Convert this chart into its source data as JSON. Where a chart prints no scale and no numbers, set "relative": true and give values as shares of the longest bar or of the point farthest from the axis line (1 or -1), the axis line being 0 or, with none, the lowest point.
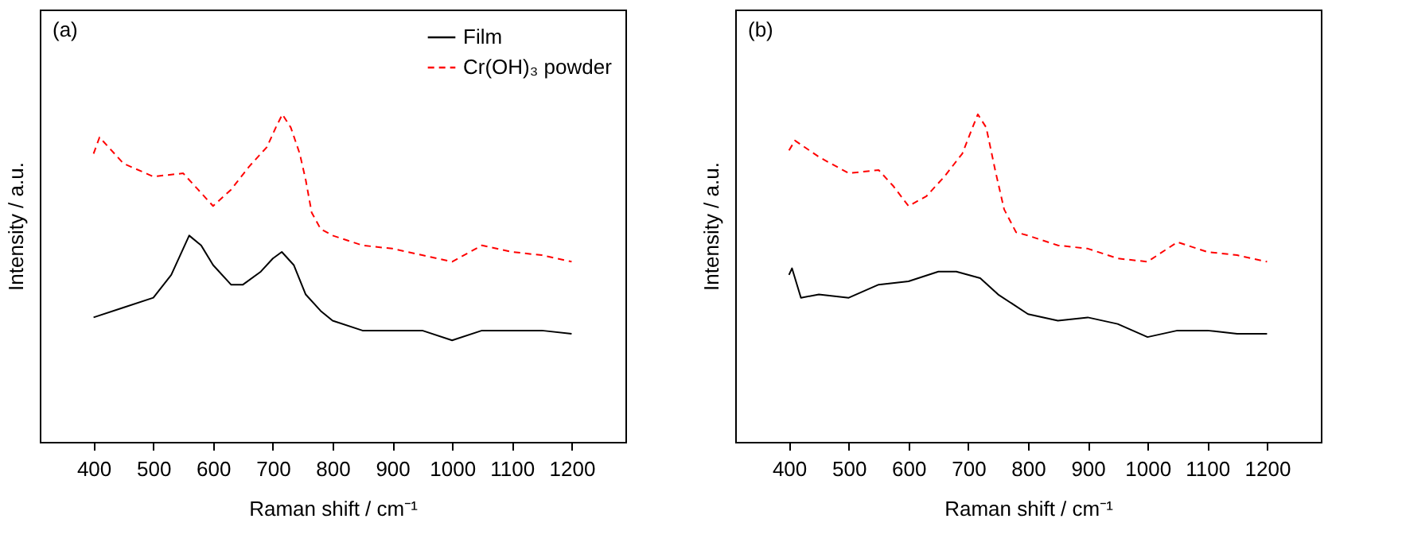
{
  "chart_data": [
    {
      "type": "line",
      "relative": true,
      "xlabel": "Raman shift / cm⁻¹",
      "ylabel": "Intensity / a.u.",
      "annotations": [
        "(a)"
      ],
      "xlim": [
        310,
        1290
      ],
      "xticks": [
        400,
        500,
        600,
        700,
        800,
        900,
        1000,
        1100,
        1200
      ],
      "tick_labels": "x",
      "legend": "top right",
      "series": [
        {
          "name": "Film",
          "color": "#000000",
          "line_style": "solid",
          "x": [
            400,
            450,
            500,
            530,
            550,
            560,
            580,
            600,
            630,
            650,
            680,
            700,
            715,
            735,
            755,
            780,
            800,
            850,
            900,
            950,
            1000,
            1050,
            1100,
            1150,
            1200
          ],
          "values": [
            0.38,
            0.41,
            0.44,
            0.51,
            0.59,
            0.63,
            0.6,
            0.54,
            0.48,
            0.48,
            0.52,
            0.56,
            0.58,
            0.54,
            0.45,
            0.4,
            0.37,
            0.34,
            0.34,
            0.34,
            0.31,
            0.34,
            0.34,
            0.34,
            0.33
          ]
        },
        {
          "name": "Cr(OH)₃ powder",
          "color": "#ff0000",
          "line_style": "dashed",
          "x": [
            400,
            410,
            450,
            500,
            550,
            575,
            600,
            630,
            660,
            690,
            705,
            716,
            730,
            745,
            755,
            765,
            780,
            800,
            850,
            900,
            950,
            1000,
            1050,
            1100,
            1150,
            1200
          ],
          "values": [
            0.88,
            0.93,
            0.85,
            0.81,
            0.82,
            0.77,
            0.72,
            0.77,
            0.84,
            0.9,
            0.96,
            1,
            0.96,
            0.88,
            0.8,
            0.7,
            0.65,
            0.63,
            0.6,
            0.59,
            0.57,
            0.55,
            0.6,
            0.58,
            0.57,
            0.55
          ]
        }
      ]
    },
    {
      "type": "line",
      "relative": true,
      "xlabel": "Raman shift / cm⁻¹",
      "ylabel": "Intensity / a.u.",
      "annotations": [
        "(b)"
      ],
      "xlim": [
        310,
        1290
      ],
      "xticks": [
        400,
        500,
        600,
        700,
        800,
        900,
        1000,
        1100,
        1200
      ],
      "tick_labels": "x",
      "series": [
        {
          "color": "#000000",
          "line_style": "solid",
          "x": [
            400,
            405,
            420,
            450,
            500,
            550,
            600,
            650,
            680,
            720,
            750,
            800,
            850,
            900,
            950,
            1000,
            1050,
            1100,
            1150,
            1200
          ],
          "values": [
            0.51,
            0.53,
            0.44,
            0.45,
            0.44,
            0.48,
            0.49,
            0.52,
            0.52,
            0.5,
            0.45,
            0.39,
            0.37,
            0.38,
            0.36,
            0.32,
            0.34,
            0.34,
            0.33,
            0.33
          ]
        },
        {
          "color": "#ff0000",
          "line_style": "dashed",
          "x": [
            400,
            410,
            450,
            500,
            550,
            575,
            600,
            630,
            660,
            690,
            705,
            716,
            730,
            745,
            760,
            780,
            800,
            850,
            900,
            950,
            1000,
            1050,
            1100,
            1150,
            1200
          ],
          "values": [
            0.89,
            0.92,
            0.87,
            0.82,
            0.83,
            0.78,
            0.72,
            0.75,
            0.81,
            0.88,
            0.95,
            1,
            0.96,
            0.83,
            0.71,
            0.64,
            0.63,
            0.6,
            0.59,
            0.56,
            0.55,
            0.61,
            0.58,
            0.57,
            0.55
          ]
        }
      ]
    }
  ]
}
